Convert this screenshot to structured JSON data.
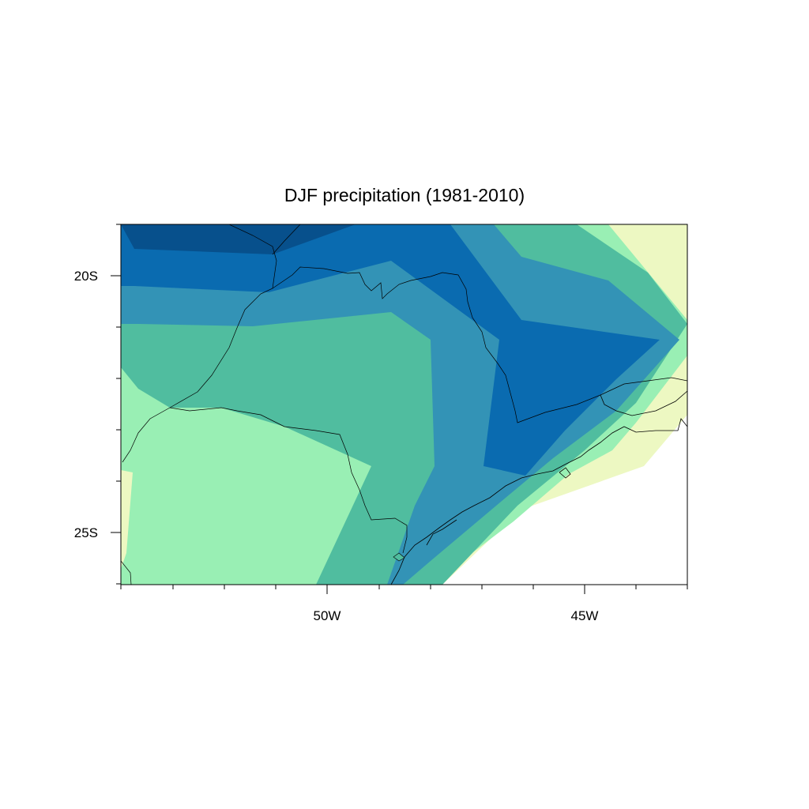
{
  "title": "DJF precipitation (1981-2010)",
  "map": {
    "region": "Southeastern Brazil",
    "lon_range": [
      -54,
      -43
    ],
    "lat_range": [
      -26,
      -19
    ],
    "x_tick_labels": [
      "50W",
      "45W"
    ],
    "y_tick_labels": [
      "20S",
      "25S"
    ],
    "colors": {
      "level_1": "#edf8c2",
      "level_2": "#99efb4",
      "level_3": "#50bd9f",
      "level_4": "#3393b6",
      "level_5": "#0a6bb0",
      "level_6": "#07508c",
      "land_lines": "#000000"
    }
  }
}
